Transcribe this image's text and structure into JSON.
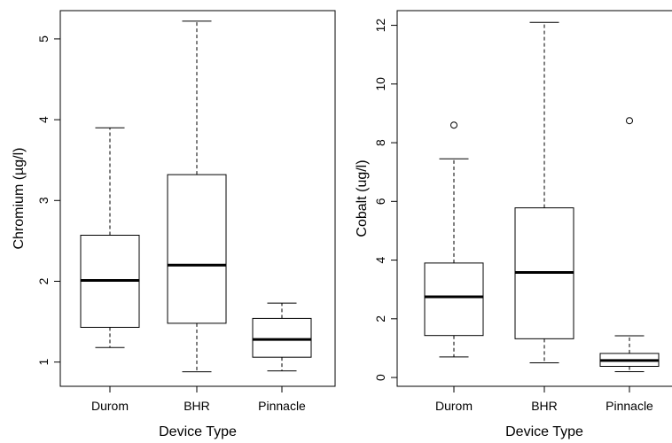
{
  "chart_data": [
    {
      "type": "box",
      "title": "",
      "xlabel": "Device Type",
      "ylabel": "Chromium (µg/l)",
      "ylim": [
        0.7,
        5.35
      ],
      "yticks": [
        "1",
        "2",
        "3",
        "4",
        "5"
      ],
      "categories": [
        "Durom",
        "BHR",
        "Pinnacle"
      ],
      "boxes": [
        {
          "name": "Durom",
          "min": 1.18,
          "q1": 1.43,
          "median": 2.01,
          "q3": 2.57,
          "max": 3.9,
          "outliers": []
        },
        {
          "name": "BHR",
          "min": 0.88,
          "q1": 1.48,
          "median": 2.2,
          "q3": 3.32,
          "max": 5.22,
          "outliers": []
        },
        {
          "name": "Pinnacle",
          "min": 0.89,
          "q1": 1.06,
          "median": 1.28,
          "q3": 1.54,
          "max": 1.73,
          "outliers": []
        }
      ]
    },
    {
      "type": "box",
      "title": "",
      "xlabel": "Device Type",
      "ylabel": "Cobalt (ug/l)",
      "ylim": [
        -0.3,
        12.5
      ],
      "yticks": [
        "0",
        "2",
        "4",
        "6",
        "8",
        "10",
        "12"
      ],
      "categories": [
        "Durom",
        "BHR",
        "Pinnacle"
      ],
      "boxes": [
        {
          "name": "Durom",
          "min": 0.7,
          "q1": 1.43,
          "median": 2.75,
          "q3": 3.9,
          "max": 7.45,
          "outliers": [
            8.6
          ]
        },
        {
          "name": "BHR",
          "min": 0.5,
          "q1": 1.32,
          "median": 3.58,
          "q3": 5.78,
          "max": 12.1,
          "outliers": []
        },
        {
          "name": "Pinnacle",
          "min": 0.2,
          "q1": 0.38,
          "median": 0.58,
          "q3": 0.82,
          "max": 1.42,
          "outliers": [
            8.75
          ]
        }
      ]
    }
  ]
}
